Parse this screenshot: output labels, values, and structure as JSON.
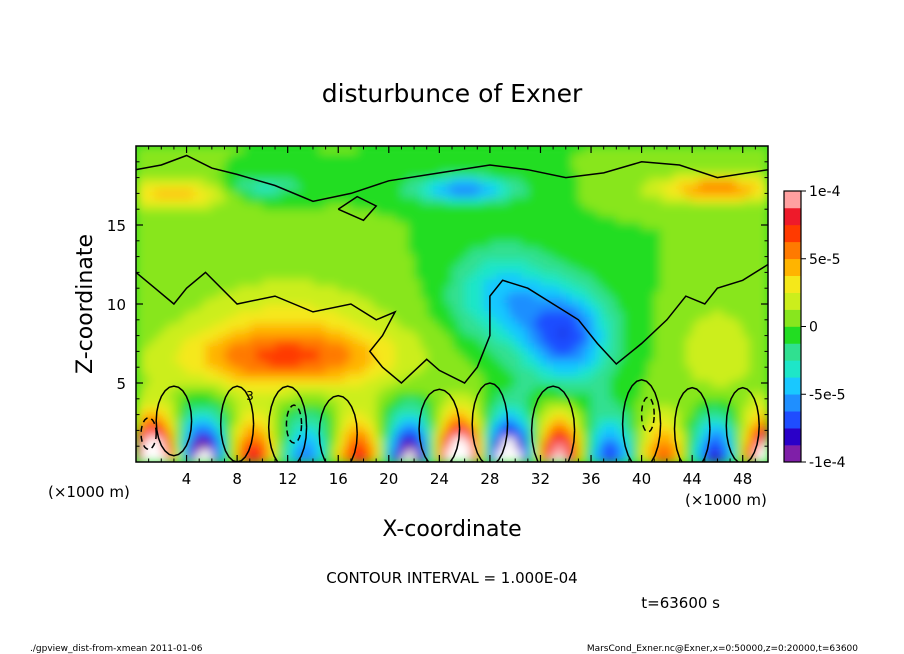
{
  "chart_data": {
    "type": "heatmap",
    "title": "disturbunce of Exner",
    "xlabel": "X-coordinate",
    "ylabel": "Z-coordinate",
    "x_unit": "(×1000 m)",
    "y_unit": "(×1000 m)",
    "x_range": [
      0,
      50
    ],
    "y_range": [
      0,
      20
    ],
    "x_ticks": [
      "4",
      "8",
      "12",
      "16",
      "20",
      "24",
      "28",
      "32",
      "36",
      "40",
      "44",
      "48"
    ],
    "y_ticks": [
      "5",
      "10",
      "15"
    ],
    "colorbar": {
      "range": [
        -0.0001,
        0.0001
      ],
      "tick_labels": [
        "1e-4",
        "5e-5",
        "0",
        "-5e-5",
        "-1e-4"
      ],
      "tick_values": [
        0.0001,
        5e-05,
        0,
        -5e-05,
        -0.0001
      ],
      "colors": [
        "#7f1fa8",
        "#2a00c8",
        "#1f4dff",
        "#1f8fff",
        "#19c8ff",
        "#1ee6c8",
        "#30e090",
        "#22dd22",
        "#88e61e",
        "#ccee1c",
        "#f5e81a",
        "#ffb400",
        "#ff7a00",
        "#ff3a00",
        "#ee1a2a",
        "#ffa0a0"
      ]
    },
    "contour_interval": "CONTOUR INTERVAL = 1.000E-04",
    "time_label": "t=63600 s",
    "contour_label": "3"
  },
  "footer": {
    "left": "./gpview_dist-from-xmean  2011-01-06",
    "right": "MarsCond_Exner.nc@Exner,x=0:50000,z=0:20000,t=63600"
  }
}
